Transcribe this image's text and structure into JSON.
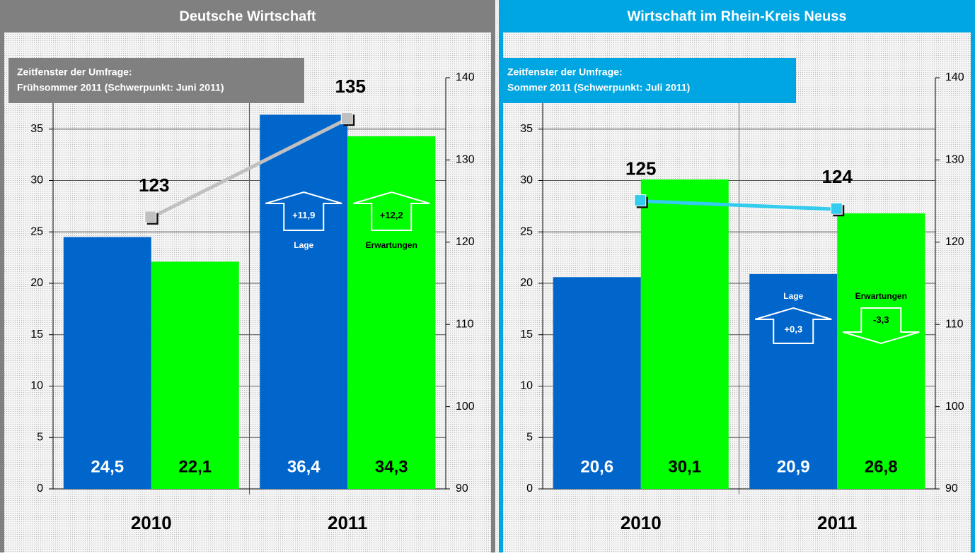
{
  "chart_data": [
    {
      "type": "bar",
      "title": "Deutsche Wirtschaft",
      "header_color": "#808080",
      "note": [
        "Zeitfenster der Umfrage:",
        "Frühsommer 2011 (Schwerpunkt: Juni 2011)"
      ],
      "categories": [
        "2010",
        "2011"
      ],
      "series": [
        {
          "name": "Lage",
          "color": "#0066cc",
          "label_color": "#ffffff",
          "values": [
            24.5,
            36.4
          ],
          "value_labels": [
            "24,5",
            "36,4"
          ]
        },
        {
          "name": "Erwartungen",
          "color": "#00ff00",
          "label_color": "#000000",
          "values": [
            22.1,
            34.3
          ],
          "value_labels": [
            "22,1",
            "34,3"
          ]
        },
        {
          "type": "line",
          "axis": "y2",
          "color": "#c0c0c0",
          "values": [
            123,
            135
          ]
        }
      ],
      "annotations": [
        {
          "label": "Lage",
          "change": "+11,9",
          "direction": "up"
        },
        {
          "label": "Erwartungen",
          "change": "+12,2",
          "direction": "up"
        }
      ],
      "ylim": [
        0,
        40
      ],
      "yticks": [
        0,
        5,
        10,
        15,
        20,
        25,
        30,
        35
      ],
      "y2lim": [
        90,
        140
      ],
      "y2ticks": [
        90,
        100,
        110,
        120,
        130,
        140
      ],
      "grid": true
    },
    {
      "type": "bar",
      "title": "Wirtschaft im Rhein-Kreis Neuss",
      "header_color": "#00a6e2",
      "note": [
        "Zeitfenster der Umfrage:",
        "Sommer 2011 (Schwerpunkt: Juli 2011)"
      ],
      "categories": [
        "2010",
        "2011"
      ],
      "series": [
        {
          "name": "Lage",
          "color": "#0066cc",
          "label_color": "#ffffff",
          "values": [
            20.6,
            20.9
          ],
          "value_labels": [
            "20,6",
            "20,9"
          ]
        },
        {
          "name": "Erwartungen",
          "color": "#00ff00",
          "label_color": "#000000",
          "values": [
            30.1,
            26.8
          ],
          "value_labels": [
            "30,1",
            "26,8"
          ]
        },
        {
          "type": "line",
          "axis": "y2",
          "color": "#33ccee",
          "values": [
            125,
            124
          ]
        }
      ],
      "annotations": [
        {
          "label": "Lage",
          "change": "+0,3",
          "direction": "up"
        },
        {
          "label": "Erwartungen",
          "change": "-3,3",
          "direction": "down"
        }
      ],
      "ylim": [
        0,
        40
      ],
      "yticks": [
        0,
        5,
        10,
        15,
        20,
        25,
        30,
        35
      ],
      "y2lim": [
        90,
        140
      ],
      "y2ticks": [
        90,
        100,
        110,
        120,
        130,
        140
      ],
      "grid": true
    }
  ]
}
